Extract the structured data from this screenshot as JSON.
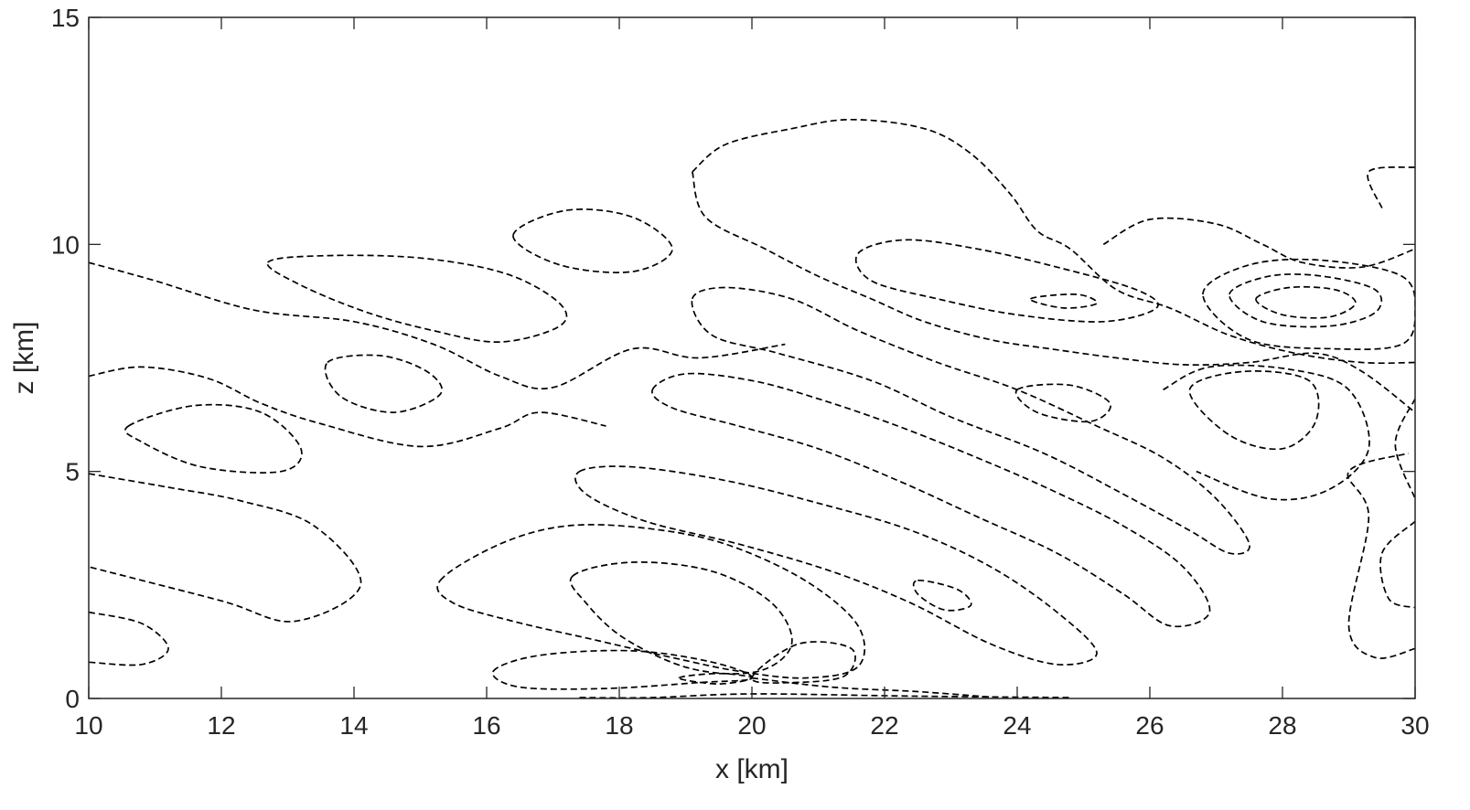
{
  "chart_data": {
    "type": "contour",
    "title": "",
    "xlabel": "x [km]",
    "ylabel": "z [km]",
    "xlim": [
      10,
      30
    ],
    "ylim": [
      0,
      15
    ],
    "xticks": [
      10,
      12,
      14,
      16,
      18,
      20,
      22,
      24,
      26,
      28,
      30
    ],
    "yticks": [
      0,
      5,
      10,
      15
    ],
    "grid": false,
    "line_style": "dashed",
    "line_color": "#000000",
    "contours": [
      {
        "closed": false,
        "points": [
          [
            10,
            9.6
          ],
          [
            11,
            9.2
          ],
          [
            12.5,
            8.55
          ],
          [
            14,
            8.3
          ],
          [
            15.2,
            7.8
          ],
          [
            16.2,
            7.1
          ],
          [
            17,
            6.85
          ],
          [
            18.2,
            7.7
          ],
          [
            19.2,
            7.5
          ],
          [
            20.5,
            7.8
          ]
        ]
      },
      {
        "closed": false,
        "points": [
          [
            10,
            7.1
          ],
          [
            10.8,
            7.3
          ],
          [
            11.8,
            7.05
          ],
          [
            12.6,
            6.5
          ],
          [
            13.5,
            6.05
          ],
          [
            15,
            5.55
          ],
          [
            16.2,
            5.95
          ],
          [
            16.8,
            6.3
          ],
          [
            17.8,
            6.0
          ]
        ]
      },
      {
        "closed": true,
        "points": [
          [
            12.7,
            9.6
          ],
          [
            13.5,
            9.75
          ],
          [
            15,
            9.7
          ],
          [
            16.3,
            9.35
          ],
          [
            17.1,
            8.7
          ],
          [
            17.1,
            8.2
          ],
          [
            16.2,
            7.85
          ],
          [
            15.2,
            8.1
          ],
          [
            14.2,
            8.5
          ],
          [
            13.2,
            9.1
          ]
        ]
      },
      {
        "closed": true,
        "points": [
          [
            16.4,
            10.2
          ],
          [
            17.2,
            10.75
          ],
          [
            18.2,
            10.6
          ],
          [
            18.8,
            9.9
          ],
          [
            18.2,
            9.4
          ],
          [
            17.1,
            9.55
          ]
        ]
      },
      {
        "closed": true,
        "points": [
          [
            13.6,
            7.4
          ],
          [
            14.4,
            7.55
          ],
          [
            15.1,
            7.2
          ],
          [
            15.3,
            6.7
          ],
          [
            14.6,
            6.3
          ],
          [
            13.8,
            6.65
          ]
        ]
      },
      {
        "closed": true,
        "points": [
          [
            10.6,
            6.0
          ],
          [
            11.6,
            6.45
          ],
          [
            12.6,
            6.3
          ],
          [
            13.2,
            5.5
          ],
          [
            12.9,
            5.0
          ],
          [
            11.7,
            5.1
          ],
          [
            10.8,
            5.65
          ]
        ]
      },
      {
        "closed": false,
        "points": [
          [
            10,
            4.95
          ],
          [
            11.2,
            4.65
          ],
          [
            12.3,
            4.35
          ],
          [
            13.4,
            3.8
          ],
          [
            14.1,
            2.5
          ],
          [
            13.1,
            1.7
          ],
          [
            12,
            2.15
          ],
          [
            10,
            2.9
          ]
        ]
      },
      {
        "closed": false,
        "points": [
          [
            10,
            1.9
          ],
          [
            10.8,
            1.65
          ],
          [
            11.2,
            1.1
          ],
          [
            10.8,
            0.75
          ],
          [
            10,
            0.8
          ]
        ]
      },
      {
        "closed": false,
        "points": [
          [
            19.1,
            11.6
          ],
          [
            19.6,
            12.2
          ],
          [
            20.6,
            12.55
          ],
          [
            21.5,
            12.75
          ],
          [
            22.6,
            12.55
          ],
          [
            23.3,
            12.0
          ],
          [
            23.9,
            11.1
          ],
          [
            24.3,
            10.3
          ],
          [
            24.8,
            9.9
          ],
          [
            25.5,
            9.0
          ],
          [
            26.3,
            8.6
          ],
          [
            27.2,
            8.0
          ],
          [
            28.2,
            7.6
          ],
          [
            29.2,
            7.4
          ],
          [
            30,
            7.4
          ]
        ]
      },
      {
        "closed": false,
        "points": [
          [
            19.1,
            11.6
          ],
          [
            19.3,
            10.6
          ],
          [
            20.2,
            9.9
          ],
          [
            21,
            9.3
          ],
          [
            21.8,
            8.8
          ],
          [
            22.6,
            8.3
          ],
          [
            23.6,
            7.9
          ],
          [
            24.5,
            7.7
          ],
          [
            25.5,
            7.5
          ],
          [
            26.5,
            7.35
          ],
          [
            27.5,
            7.4
          ],
          [
            28.5,
            7.6
          ],
          [
            29.2,
            7.2
          ],
          [
            30,
            6.3
          ]
        ]
      },
      {
        "closed": true,
        "points": [
          [
            19.1,
            8.8
          ],
          [
            19.6,
            9.05
          ],
          [
            20.6,
            8.8
          ],
          [
            21.6,
            8.1
          ],
          [
            22.8,
            7.4
          ],
          [
            24,
            6.8
          ],
          [
            25.2,
            6.0
          ],
          [
            26.2,
            5.3
          ],
          [
            27,
            4.4
          ],
          [
            27.5,
            3.4
          ],
          [
            27.2,
            3.2
          ],
          [
            26.6,
            3.7
          ],
          [
            25.6,
            4.5
          ],
          [
            24.4,
            5.4
          ],
          [
            23,
            6.2
          ],
          [
            21.8,
            7.0
          ],
          [
            20.4,
            7.6
          ],
          [
            19.4,
            8.0
          ]
        ]
      },
      {
        "closed": true,
        "points": [
          [
            18.5,
            6.8
          ],
          [
            19,
            7.15
          ],
          [
            20,
            7.0
          ],
          [
            21,
            6.6
          ],
          [
            22.2,
            6.0
          ],
          [
            23.4,
            5.3
          ],
          [
            24.5,
            4.6
          ],
          [
            25.6,
            3.8
          ],
          [
            26.5,
            2.9
          ],
          [
            26.9,
            1.9
          ],
          [
            26.3,
            1.6
          ],
          [
            25.6,
            2.3
          ],
          [
            24.6,
            3.2
          ],
          [
            23.4,
            4.0
          ],
          [
            22.2,
            4.8
          ],
          [
            21,
            5.5
          ],
          [
            19.8,
            6.0
          ],
          [
            18.8,
            6.4
          ]
        ]
      },
      {
        "closed": true,
        "points": [
          [
            17.4,
            5.0
          ],
          [
            18.2,
            5.1
          ],
          [
            19.6,
            4.8
          ],
          [
            21,
            4.3
          ],
          [
            22.4,
            3.7
          ],
          [
            23.6,
            2.9
          ],
          [
            24.6,
            1.9
          ],
          [
            25.2,
            1.0
          ],
          [
            24.6,
            0.75
          ],
          [
            23.6,
            1.2
          ],
          [
            22.4,
            2.1
          ],
          [
            21.2,
            2.8
          ],
          [
            19.8,
            3.4
          ],
          [
            18.4,
            3.9
          ],
          [
            17.5,
            4.5
          ]
        ]
      },
      {
        "closed": true,
        "points": [
          [
            15.3,
            2.6
          ],
          [
            16.2,
            3.4
          ],
          [
            17.2,
            3.8
          ],
          [
            18.4,
            3.75
          ],
          [
            19.6,
            3.4
          ],
          [
            20.8,
            2.6
          ],
          [
            21.6,
            1.6
          ],
          [
            21.6,
            0.7
          ],
          [
            20.8,
            0.45
          ],
          [
            19.8,
            0.6
          ],
          [
            18.8,
            0.9
          ],
          [
            17.6,
            1.3
          ],
          [
            16.4,
            1.7
          ],
          [
            15.5,
            2.1
          ]
        ]
      },
      {
        "closed": true,
        "points": [
          [
            17.3,
            2.7
          ],
          [
            18.2,
            3.0
          ],
          [
            19.4,
            2.8
          ],
          [
            20.3,
            2.1
          ],
          [
            20.6,
            1.2
          ],
          [
            20.1,
            0.6
          ],
          [
            19.1,
            0.65
          ],
          [
            18.1,
            1.3
          ],
          [
            17.5,
            2.1
          ]
        ]
      },
      {
        "closed": true,
        "points": [
          [
            16.1,
            0.6
          ],
          [
            16.8,
            0.95
          ],
          [
            18.2,
            1.05
          ],
          [
            19.4,
            0.8
          ],
          [
            20,
            0.45
          ],
          [
            19.2,
            0.35
          ],
          [
            17.8,
            0.22
          ],
          [
            16.5,
            0.25
          ]
        ]
      },
      {
        "closed": true,
        "points": [
          [
            18.9,
            0.45
          ],
          [
            19.5,
            0.55
          ],
          [
            20,
            0.45
          ],
          [
            19.5,
            0.32
          ]
        ]
      },
      {
        "closed": true,
        "points": [
          [
            20,
            0.45
          ],
          [
            20.7,
            1.2
          ],
          [
            21.5,
            1.1
          ],
          [
            21.4,
            0.5
          ],
          [
            20.6,
            0.35
          ]
        ]
      },
      {
        "closed": false,
        "points": [
          [
            17.4,
            0.02
          ],
          [
            18.5,
            0.02
          ],
          [
            20,
            0.1
          ],
          [
            22.5,
            0.05
          ],
          [
            24.8,
            0.02
          ]
        ]
      },
      {
        "closed": false,
        "points": [
          [
            20,
            0.45
          ],
          [
            21.2,
            0.25
          ],
          [
            22.5,
            0.15
          ],
          [
            23.6,
            0.03
          ]
        ]
      },
      {
        "closed": true,
        "points": [
          [
            22.5,
            2.6
          ],
          [
            23.1,
            2.4
          ],
          [
            23.3,
            2.05
          ],
          [
            22.9,
            1.95
          ],
          [
            22.5,
            2.3
          ]
        ]
      },
      {
        "closed": true,
        "points": [
          [
            24,
            6.8
          ],
          [
            24.8,
            6.9
          ],
          [
            25.4,
            6.5
          ],
          [
            25.1,
            6.1
          ],
          [
            24.3,
            6.3
          ]
        ]
      },
      {
        "closed": true,
        "points": [
          [
            24.2,
            8.8
          ],
          [
            24.9,
            8.9
          ],
          [
            25.2,
            8.7
          ],
          [
            24.7,
            8.6
          ]
        ]
      },
      {
        "closed": true,
        "points": [
          [
            21.6,
            9.8
          ],
          [
            22.3,
            10.1
          ],
          [
            23.4,
            9.9
          ],
          [
            24.6,
            9.5
          ],
          [
            25.8,
            9.0
          ],
          [
            26.1,
            8.6
          ],
          [
            25.3,
            8.3
          ],
          [
            24.0,
            8.45
          ],
          [
            22.8,
            8.8
          ],
          [
            21.8,
            9.2
          ]
        ]
      },
      {
        "closed": false,
        "points": [
          [
            25.3,
            10.0
          ],
          [
            26.0,
            10.55
          ],
          [
            27.0,
            10.45
          ],
          [
            27.7,
            10.0
          ],
          [
            28.3,
            9.6
          ],
          [
            29.2,
            9.5
          ],
          [
            30,
            9.9
          ]
        ]
      },
      {
        "closed": false,
        "points": [
          [
            29.5,
            10.8
          ],
          [
            29.3,
            11.6
          ],
          [
            30,
            11.7
          ]
        ]
      },
      {
        "closed": true,
        "points": [
          [
            27.2,
            8.9
          ],
          [
            27.8,
            9.3
          ],
          [
            28.6,
            9.3
          ],
          [
            29.4,
            9.0
          ],
          [
            29.4,
            8.5
          ],
          [
            28.7,
            8.2
          ],
          [
            27.7,
            8.3
          ]
        ]
      },
      {
        "closed": true,
        "points": [
          [
            27.6,
            8.8
          ],
          [
            28.1,
            9.05
          ],
          [
            28.8,
            9.0
          ],
          [
            29.1,
            8.7
          ],
          [
            28.7,
            8.4
          ],
          [
            28.0,
            8.45
          ]
        ]
      },
      {
        "closed": true,
        "points": [
          [
            26.8,
            8.9
          ],
          [
            27.5,
            9.55
          ],
          [
            28.6,
            9.65
          ],
          [
            29.8,
            9.3
          ],
          [
            30,
            8.5
          ],
          [
            29.8,
            7.8
          ],
          [
            28.8,
            7.7
          ],
          [
            27.5,
            7.9
          ]
        ]
      },
      {
        "closed": true,
        "points": [
          [
            26.6,
            6.8
          ],
          [
            27.4,
            7.2
          ],
          [
            28.4,
            7.0
          ],
          [
            28.5,
            6.1
          ],
          [
            28.0,
            5.5
          ],
          [
            27.2,
            5.8
          ]
        ]
      },
      {
        "closed": false,
        "points": [
          [
            26.2,
            6.8
          ],
          [
            26.9,
            7.3
          ],
          [
            28.1,
            7.25
          ],
          [
            29.0,
            6.8
          ],
          [
            29.3,
            5.5
          ],
          [
            28.7,
            4.6
          ],
          [
            27.8,
            4.4
          ],
          [
            26.7,
            5.0
          ]
        ]
      },
      {
        "closed": false,
        "points": [
          [
            30,
            6.6
          ],
          [
            29.7,
            5.6
          ],
          [
            30,
            4.4
          ]
        ]
      },
      {
        "closed": false,
        "points": [
          [
            30,
            3.9
          ],
          [
            29.5,
            3.2
          ],
          [
            29.6,
            2.2
          ],
          [
            30,
            2.0
          ]
        ]
      },
      {
        "closed": false,
        "points": [
          [
            30,
            1.1
          ],
          [
            29.4,
            0.9
          ],
          [
            29.0,
            1.6
          ],
          [
            29.3,
            4.0
          ],
          [
            29.0,
            5.0
          ],
          [
            29.9,
            5.4
          ]
        ]
      }
    ]
  }
}
